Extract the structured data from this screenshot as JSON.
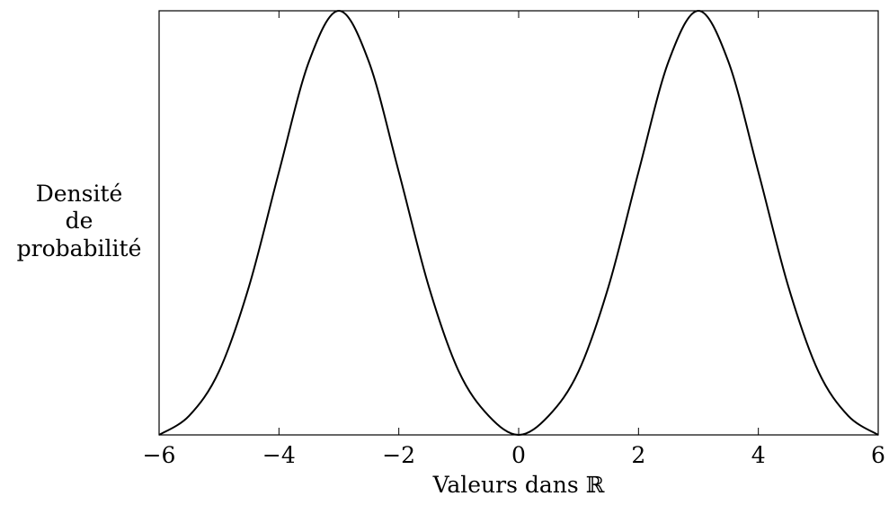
{
  "chart_data": {
    "type": "line",
    "title": "",
    "xlabel": "Valeurs dans ℝ",
    "ylabel": [
      "Densité",
      "de",
      "probabilité"
    ],
    "xlim": [
      -6,
      6
    ],
    "ylim": [
      0,
      1
    ],
    "x_ticks": [
      -6,
      -4,
      -2,
      0,
      2,
      4,
      6
    ],
    "x_tick_labels": [
      "−6",
      "−4",
      "−2",
      "0",
      "2",
      "4",
      "6"
    ],
    "y_ticks": [],
    "grid": false,
    "legend": "none",
    "series": [
      {
        "x": [
          -6,
          -5.5,
          -5,
          -4.5,
          -4,
          -3.5,
          -3,
          -2.5,
          -2,
          -1.5,
          -1,
          -0.5,
          0,
          0.5,
          1,
          1.5,
          2,
          2.5,
          3,
          3.5,
          4,
          4.5,
          5,
          5.5,
          6
        ],
        "y": [
          0.0,
          0.045,
          0.15,
          0.35,
          0.62,
          0.88,
          1.0,
          0.88,
          0.62,
          0.35,
          0.15,
          0.045,
          0.0,
          0.045,
          0.15,
          0.35,
          0.62,
          0.88,
          1.0,
          0.88,
          0.62,
          0.35,
          0.15,
          0.045,
          0.0
        ]
      }
    ],
    "colors": {
      "line": "#000000",
      "frame": "#000000"
    }
  }
}
